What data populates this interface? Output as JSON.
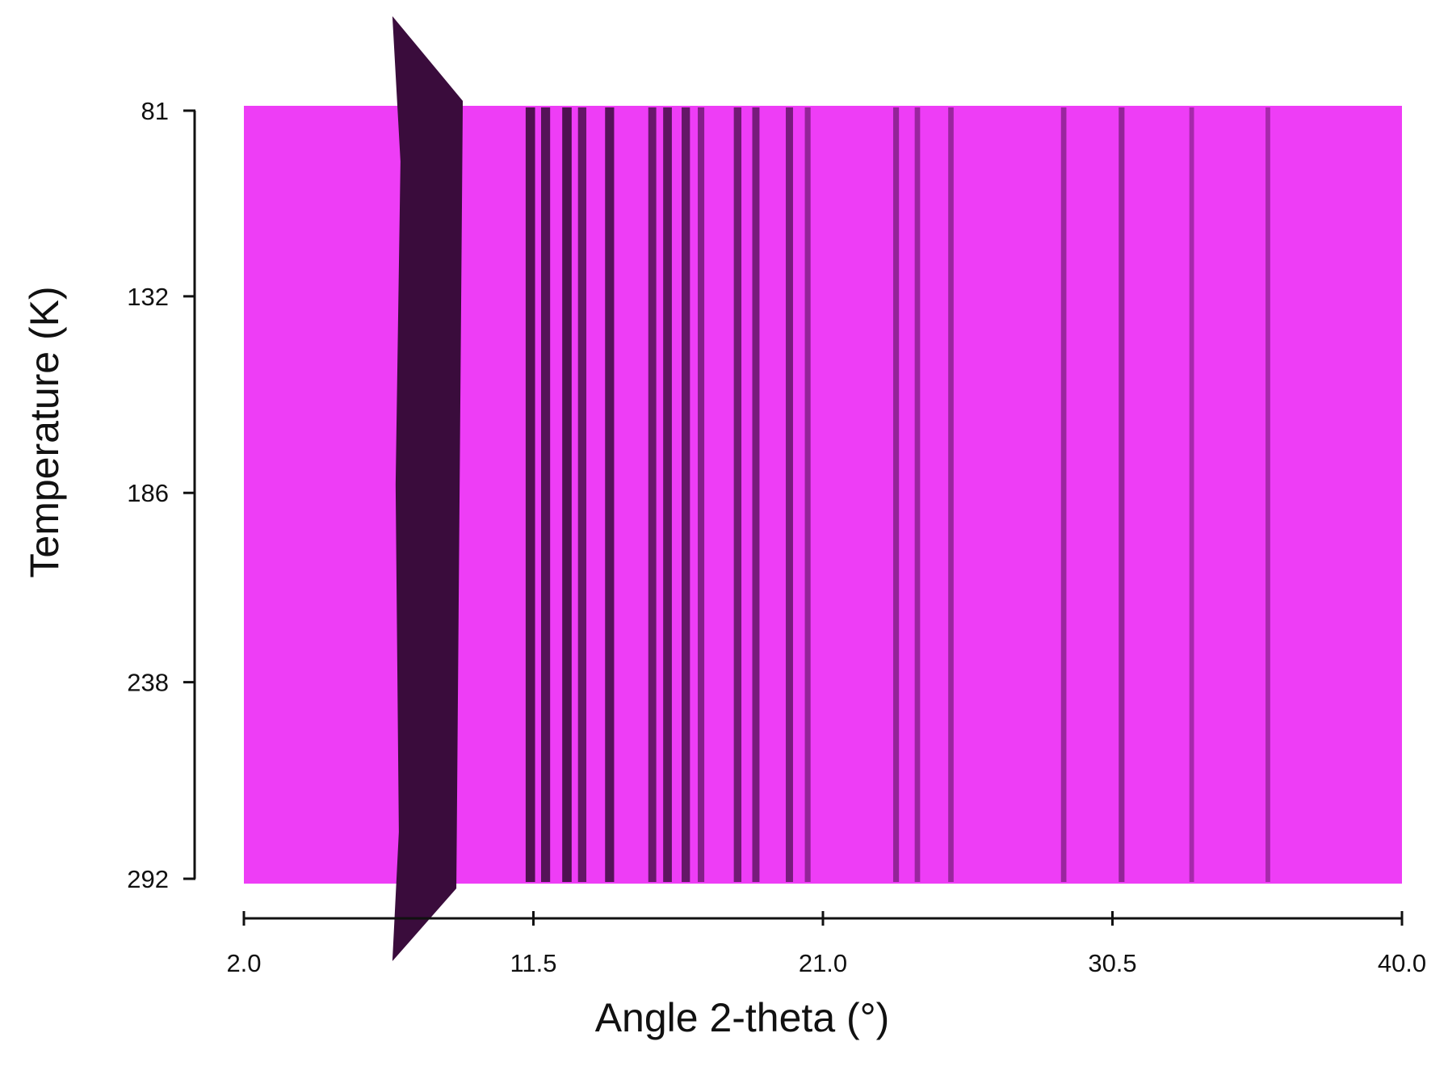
{
  "chart_data": {
    "type": "heatmap",
    "title": "",
    "xlabel": "Angle 2-theta (°)",
    "ylabel": "Temperature (K)",
    "xlim": [
      2.0,
      40.0
    ],
    "ylim": [
      81,
      292
    ],
    "y_inverted": true,
    "x_ticks": [
      "2.0",
      "11.5",
      "21.0",
      "30.5",
      "40.0"
    ],
    "y_ticks": [
      "81",
      "132",
      "186",
      "238",
      "292"
    ],
    "background_color": "#ee3df6",
    "peak_color": "#3a0c3c",
    "grid": false,
    "legend": "none",
    "peaks_2theta": [
      {
        "x": 7.8,
        "intensity": 1.0
      },
      {
        "x": 8.6,
        "intensity": 1.0
      },
      {
        "x": 11.4,
        "intensity": 0.85
      },
      {
        "x": 11.9,
        "intensity": 0.8
      },
      {
        "x": 12.6,
        "intensity": 0.85
      },
      {
        "x": 13.1,
        "intensity": 0.7
      },
      {
        "x": 14.0,
        "intensity": 0.8
      },
      {
        "x": 15.4,
        "intensity": 0.65
      },
      {
        "x": 15.9,
        "intensity": 0.75
      },
      {
        "x": 16.5,
        "intensity": 0.7
      },
      {
        "x": 17.0,
        "intensity": 0.45
      },
      {
        "x": 18.2,
        "intensity": 0.6
      },
      {
        "x": 18.8,
        "intensity": 0.55
      },
      {
        "x": 19.9,
        "intensity": 0.55
      },
      {
        "x": 20.5,
        "intensity": 0.35
      },
      {
        "x": 23.4,
        "intensity": 0.35
      },
      {
        "x": 24.1,
        "intensity": 0.3
      },
      {
        "x": 25.2,
        "intensity": 0.3
      },
      {
        "x": 28.9,
        "intensity": 0.3
      },
      {
        "x": 30.8,
        "intensity": 0.35
      },
      {
        "x": 33.1,
        "intensity": 0.2
      },
      {
        "x": 35.6,
        "intensity": 0.2
      }
    ]
  }
}
